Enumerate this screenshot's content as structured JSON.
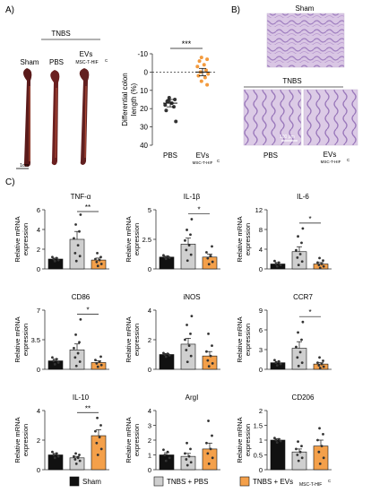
{
  "panel_labels": {
    "a": "A)",
    "b": "B)",
    "c": "C)"
  },
  "panel_a": {
    "photo_header": "TNBS",
    "photo_labels": [
      "Sham",
      "PBS",
      "EVs",
      "MSC-T-HIF",
      "C"
    ],
    "scale_bar": "1cm"
  },
  "panel_b": {
    "sham_label": "Sham",
    "tnbs_header": "TNBS",
    "pbs_label": "PBS",
    "evs_label": "EVs",
    "evs_sub": "MSC-T-HIF",
    "evs_sup": "C",
    "scale_bar": "100 µm"
  },
  "colors": {
    "sham": "#111111",
    "pbs": "#cfcfcf",
    "evs": "#f4a04a",
    "dots": "#333333",
    "evs_dots_a": "#f39a3d"
  },
  "legend": {
    "items": [
      {
        "key": "sham",
        "label": "Sham"
      },
      {
        "key": "pbs",
        "label": "TNBS + PBS"
      },
      {
        "key": "evs",
        "label": "TNBS + EVs",
        "sub": "MSC-T-HIF",
        "sup": "C"
      }
    ]
  },
  "chart_data": [
    {
      "type": "scatter",
      "id": "colon-length",
      "ylabel": [
        "Differential colon",
        "length (%)"
      ],
      "ylim": [
        -10,
        40
      ],
      "y_inverted": true,
      "yticks": [
        -10,
        0,
        10,
        20,
        30,
        40
      ],
      "reference_line": 0,
      "significance": "***",
      "categories": [
        "PBS",
        "EVs"
      ],
      "category_sub": [
        "",
        "MSC-T-HIF"
      ],
      "category_sup": [
        "",
        "C"
      ],
      "series": [
        {
          "key": "pbs",
          "mean": 17,
          "sem": 2,
          "points": [
            14,
            15,
            16,
            17,
            18,
            19,
            16,
            27,
            21
          ]
        },
        {
          "key": "evs",
          "mean": 0,
          "sem": 2,
          "points": [
            -8,
            -7,
            -6,
            -4,
            -3,
            -1,
            0,
            1,
            2,
            3,
            5,
            7
          ]
        }
      ]
    },
    {
      "type": "bar",
      "id": "tnf",
      "title": "TNF-α",
      "ylabel": [
        "Relative mRNA",
        "expression"
      ],
      "ylim": [
        0,
        6
      ],
      "yticks": [
        0,
        2,
        4,
        6
      ],
      "series": [
        {
          "key": "sham",
          "mean": 1.0,
          "sem": 0.1,
          "points": [
            0.8,
            0.9,
            1.0,
            1.1,
            1.2
          ]
        },
        {
          "key": "pbs",
          "mean": 3.0,
          "sem": 0.8,
          "points": [
            0.8,
            1.3,
            1.6,
            2.4,
            3.1,
            3.8,
            4.5,
            5.5
          ]
        },
        {
          "key": "evs",
          "mean": 0.9,
          "sem": 0.2,
          "points": [
            0.3,
            0.5,
            0.7,
            0.9,
            1.0,
            1.2,
            1.6
          ]
        }
      ],
      "significance": {
        "label": "**",
        "between": [
          1,
          2
        ]
      }
    },
    {
      "type": "bar",
      "id": "il1b",
      "title": "IL-1β",
      "ylabel": [
        "Relative mRNA",
        "expression"
      ],
      "ylim": [
        0,
        5
      ],
      "yticks": [
        0,
        2.5,
        5
      ],
      "series": [
        {
          "key": "sham",
          "mean": 1.0,
          "sem": 0.08,
          "points": [
            0.85,
            0.95,
            1.0,
            1.05,
            1.15
          ]
        },
        {
          "key": "pbs",
          "mean": 2.1,
          "sem": 0.5,
          "points": [
            0.7,
            1.2,
            1.6,
            2.0,
            2.4,
            2.9,
            3.3,
            4.2
          ]
        },
        {
          "key": "evs",
          "mean": 1.0,
          "sem": 0.25,
          "points": [
            0.4,
            0.6,
            0.9,
            1.1,
            1.4,
            1.9
          ]
        }
      ],
      "significance": {
        "label": "*",
        "between": [
          1,
          2
        ]
      }
    },
    {
      "type": "bar",
      "id": "il6",
      "title": "IL-6",
      "ylabel": [
        "Relative mRNA",
        "expression"
      ],
      "ylim": [
        0,
        12
      ],
      "yticks": [
        0,
        4,
        8,
        12
      ],
      "series": [
        {
          "key": "sham",
          "mean": 1.0,
          "sem": 0.3,
          "points": [
            0.5,
            0.8,
            1.0,
            1.3,
            1.6
          ]
        },
        {
          "key": "pbs",
          "mean": 3.5,
          "sem": 1.0,
          "points": [
            0.8,
            1.5,
            2.3,
            3.0,
            3.8,
            5.3,
            6.6,
            8.2
          ]
        },
        {
          "key": "evs",
          "mean": 1.0,
          "sem": 0.3,
          "points": [
            0.2,
            0.5,
            0.8,
            1.0,
            1.3,
            1.7,
            2.2
          ]
        }
      ],
      "significance": {
        "label": "*",
        "between": [
          1,
          2
        ]
      }
    },
    {
      "type": "bar",
      "id": "cd86",
      "title": "CD86",
      "ylabel": [
        "Relative mRNA",
        "expression"
      ],
      "ylim": [
        0,
        7
      ],
      "yticks": [
        0,
        3.5,
        7
      ],
      "series": [
        {
          "key": "sham",
          "mean": 1.0,
          "sem": 0.2,
          "points": [
            0.6,
            0.8,
            1.0,
            1.2,
            1.4
          ]
        },
        {
          "key": "pbs",
          "mean": 2.3,
          "sem": 0.7,
          "points": [
            0.4,
            0.9,
            1.4,
            1.9,
            2.5,
            3.2,
            4.1,
            5.9
          ]
        },
        {
          "key": "evs",
          "mean": 0.8,
          "sem": 0.2,
          "points": [
            0.3,
            0.5,
            0.7,
            0.9,
            1.1,
            1.5
          ]
        }
      ],
      "significance": {
        "label": "*",
        "between": [
          1,
          2
        ]
      }
    },
    {
      "type": "bar",
      "id": "inos",
      "title": "iNOS",
      "ylabel": [
        "Relative mRNA",
        "expression"
      ],
      "ylim": [
        0,
        4
      ],
      "yticks": [
        0,
        2,
        4
      ],
      "series": [
        {
          "key": "sham",
          "mean": 1.0,
          "sem": 0.07,
          "points": [
            0.85,
            0.95,
            1.0,
            1.05,
            1.1
          ]
        },
        {
          "key": "pbs",
          "mean": 1.7,
          "sem": 0.4,
          "points": [
            0.5,
            0.9,
            1.3,
            1.6,
            2.0,
            2.4,
            3.0,
            3.6
          ]
        },
        {
          "key": "evs",
          "mean": 0.9,
          "sem": 0.3,
          "points": [
            0.2,
            0.4,
            0.6,
            0.9,
            1.2,
            1.6,
            2.4
          ]
        }
      ]
    },
    {
      "type": "bar",
      "id": "ccr7",
      "title": "CCR7",
      "ylabel": [
        "Relative mRNA",
        "expression"
      ],
      "ylim": [
        0,
        9
      ],
      "yticks": [
        0,
        3,
        6,
        9
      ],
      "series": [
        {
          "key": "sham",
          "mean": 1.0,
          "sem": 0.2,
          "points": [
            0.6,
            0.8,
            1.0,
            1.2,
            1.4
          ]
        },
        {
          "key": "pbs",
          "mean": 3.2,
          "sem": 1.0,
          "points": [
            0.5,
            1.0,
            1.8,
            2.6,
            3.4,
            4.5,
            5.6,
            7.2
          ]
        },
        {
          "key": "evs",
          "mean": 0.8,
          "sem": 0.2,
          "points": [
            0.2,
            0.4,
            0.6,
            0.8,
            1.0,
            1.3,
            1.8
          ]
        }
      ],
      "significance": {
        "label": "*",
        "between": [
          1,
          2
        ]
      }
    },
    {
      "type": "bar",
      "id": "il10",
      "title": "IL-10",
      "ylabel": [
        "Relative mRNA",
        "expression"
      ],
      "ylim": [
        0,
        4
      ],
      "yticks": [
        0,
        2,
        4
      ],
      "series": [
        {
          "key": "sham",
          "mean": 1.0,
          "sem": 0.1,
          "points": [
            0.8,
            0.9,
            1.0,
            1.1,
            1.2
          ]
        },
        {
          "key": "pbs",
          "mean": 0.8,
          "sem": 0.1,
          "points": [
            0.4,
            0.6,
            0.7,
            0.8,
            0.9,
            1.0,
            1.1
          ]
        },
        {
          "key": "evs",
          "mean": 2.3,
          "sem": 0.4,
          "points": [
            1.0,
            1.4,
            1.8,
            2.2,
            2.6,
            3.0,
            3.5
          ]
        }
      ],
      "significance": {
        "label": "**",
        "between": [
          1,
          2
        ]
      }
    },
    {
      "type": "bar",
      "id": "argi",
      "title": "ArgI",
      "ylabel": [
        "Relative mRNA",
        "expression"
      ],
      "ylim": [
        0,
        4
      ],
      "yticks": [
        0,
        1,
        2,
        3,
        4
      ],
      "series": [
        {
          "key": "sham",
          "mean": 1.0,
          "sem": 0.15,
          "points": [
            0.6,
            0.8,
            1.0,
            1.2,
            1.35
          ]
        },
        {
          "key": "pbs",
          "mean": 0.9,
          "sem": 0.2,
          "points": [
            0.3,
            0.5,
            0.7,
            0.9,
            1.1,
            1.4,
            1.8
          ]
        },
        {
          "key": "evs",
          "mean": 1.4,
          "sem": 0.4,
          "points": [
            0.4,
            0.8,
            1.1,
            1.4,
            1.8,
            2.3,
            3.3
          ]
        }
      ]
    },
    {
      "type": "bar",
      "id": "cd206",
      "title": "CD206",
      "ylabel": [
        "Relative mRNA",
        "expression"
      ],
      "ylim": [
        0,
        2
      ],
      "yticks": [
        0,
        0.5,
        1.0,
        1.5,
        2.0
      ],
      "series": [
        {
          "key": "sham",
          "mean": 1.0,
          "sem": 0.05,
          "points": [
            0.92,
            0.97,
            1.0,
            1.03,
            1.07
          ]
        },
        {
          "key": "pbs",
          "mean": 0.6,
          "sem": 0.1,
          "points": [
            0.3,
            0.4,
            0.5,
            0.6,
            0.7,
            0.8,
            0.95
          ]
        },
        {
          "key": "evs",
          "mean": 0.8,
          "sem": 0.2,
          "points": [
            0.2,
            0.4,
            0.6,
            0.8,
            1.0,
            1.2,
            1.4
          ]
        }
      ]
    }
  ]
}
